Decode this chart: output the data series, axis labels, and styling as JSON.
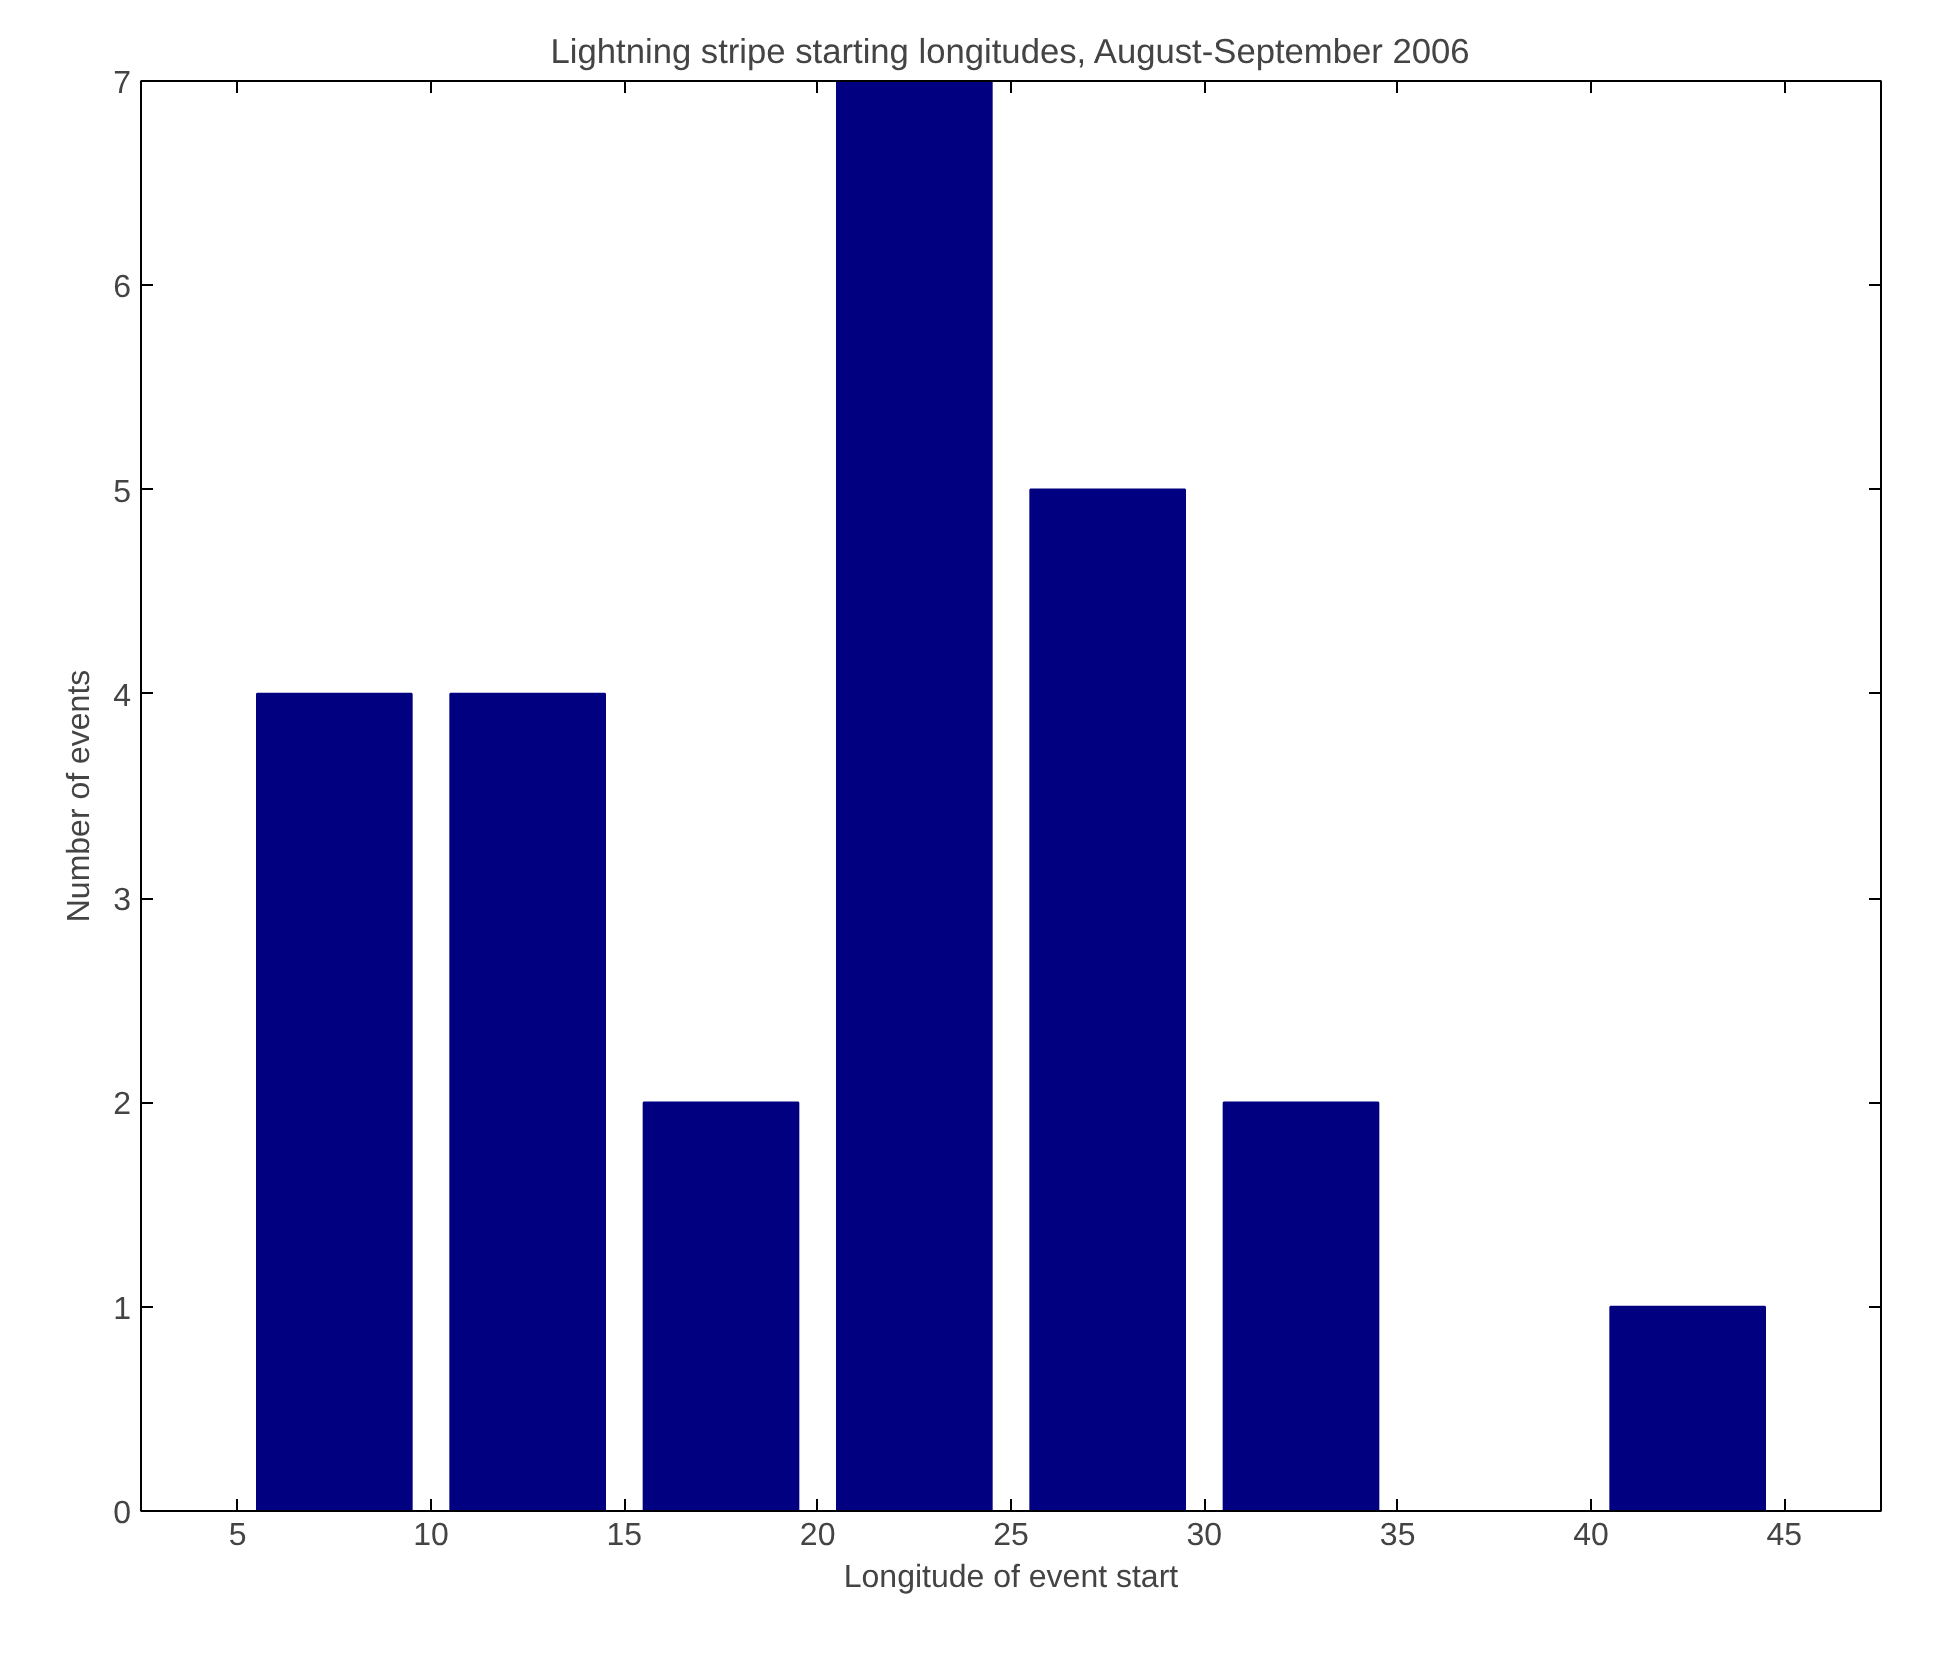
{
  "chart_data": {
    "type": "bar",
    "title": "Lightning stripe starting longitudes, August-September 2006",
    "xlabel": "Longitude of event start",
    "ylabel": "Number of events",
    "x": [
      7.5,
      12.5,
      17.5,
      22.5,
      27.5,
      32.5,
      37.5,
      42.5
    ],
    "values": [
      4,
      4,
      2,
      7,
      5,
      2,
      0,
      1
    ],
    "color": "#000080",
    "xlim": [
      2.5,
      47.5
    ],
    "xticks": [
      5,
      10,
      15,
      20,
      25,
      30,
      35,
      40,
      45
    ],
    "ylim": [
      0,
      7
    ],
    "yticks": [
      0,
      1,
      2,
      3,
      4,
      5,
      6,
      7
    ],
    "grid": false
  }
}
